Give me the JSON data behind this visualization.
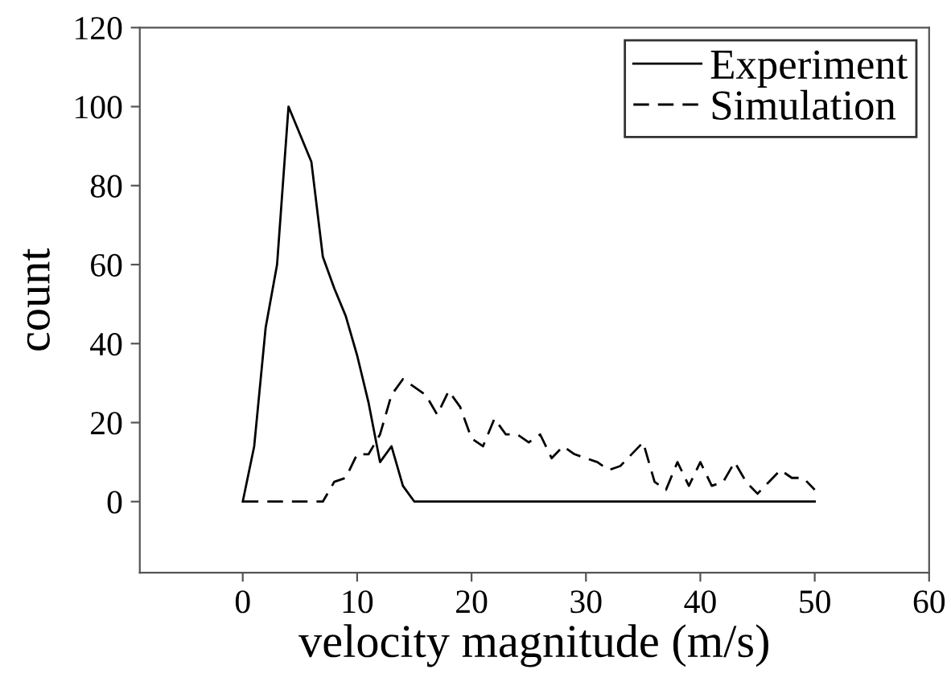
{
  "chart_data": {
    "type": "line",
    "xlabel": "velocity magnitude (m/s)",
    "ylabel": "count",
    "xlim": [
      -9,
      60
    ],
    "xticks": [
      0,
      10,
      20,
      30,
      40,
      50,
      60
    ],
    "ylim": [
      -18,
      120
    ],
    "yticks": [
      0,
      20,
      40,
      60,
      80,
      100,
      120
    ],
    "grid": false,
    "legend": "top right",
    "marker": "none",
    "series": [
      {
        "name": "Experiment",
        "color": "#000000",
        "line_style": "solid",
        "x": [
          0,
          1,
          2,
          3,
          4,
          6,
          7,
          8,
          9,
          10,
          11,
          12,
          13,
          14,
          15,
          50
        ],
        "values": [
          0,
          14,
          44,
          60,
          100,
          86,
          62,
          54,
          47,
          37,
          25,
          10,
          14,
          4,
          0,
          0
        ]
      },
      {
        "name": "Simulation",
        "color": "#000000",
        "line_style": "dashed",
        "x": [
          0,
          7,
          8,
          9,
          10,
          11,
          12,
          13,
          14,
          16,
          17,
          18,
          19,
          20,
          21,
          22,
          23,
          24,
          25,
          26,
          27,
          28,
          29,
          31,
          32,
          33,
          35,
          36,
          37,
          38,
          39,
          40,
          41,
          42,
          43,
          44,
          45,
          46,
          47,
          48,
          49,
          50
        ],
        "values": [
          0,
          0,
          5,
          6,
          12,
          12,
          17,
          27,
          31,
          27,
          22,
          28,
          24,
          16,
          14,
          21,
          17,
          17,
          15,
          17,
          11,
          14,
          12,
          10,
          8,
          9,
          15,
          5,
          3,
          10,
          4,
          10,
          4,
          5,
          10,
          5,
          2,
          5,
          8,
          6,
          6,
          3
        ]
      }
    ]
  }
}
